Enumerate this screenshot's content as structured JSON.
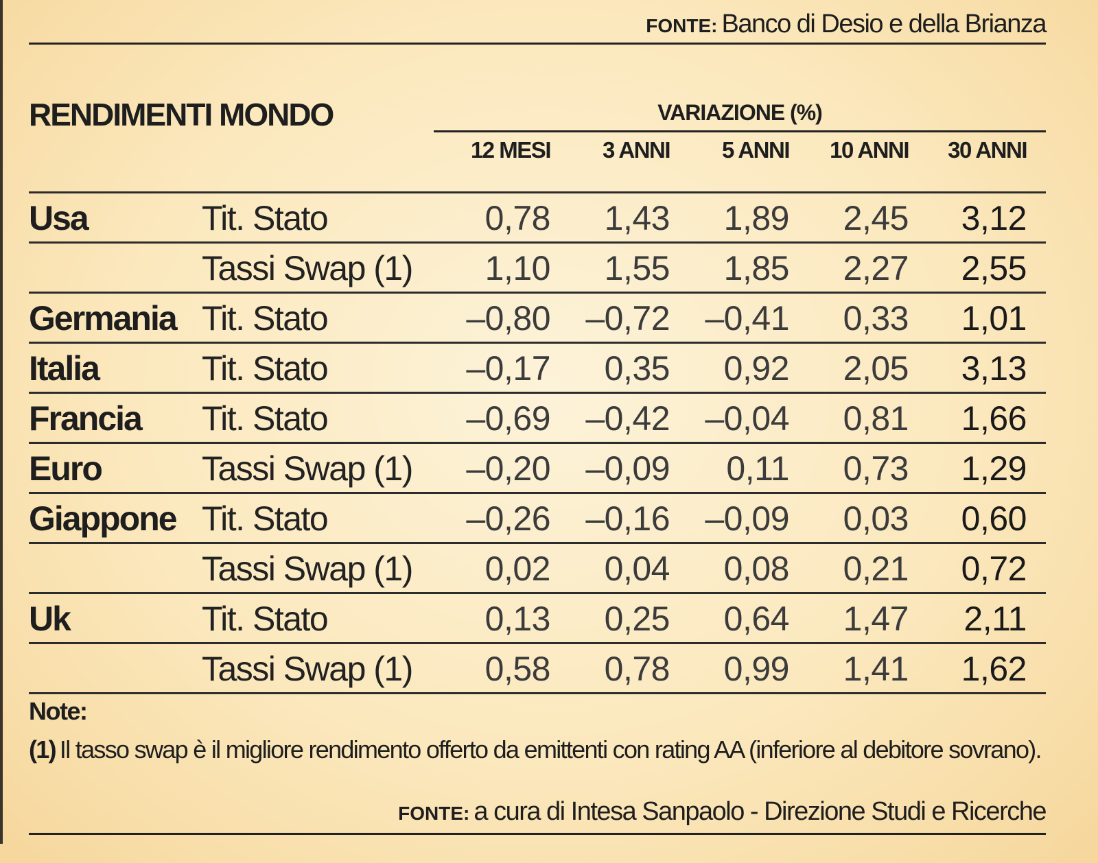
{
  "source_top": {
    "label": "FONTE:",
    "text": "Banco di Desio e della Brianza"
  },
  "table": {
    "title": "RENDIMENTI MONDO",
    "group_header": "VARIAZIONE (%)",
    "columns": [
      "12 MESI",
      "3 ANNI",
      "5 ANNI",
      "10 ANNI",
      "30 ANNI"
    ],
    "rows": [
      {
        "country": "Usa",
        "instrument": "Tit. Stato",
        "values": [
          "0,78",
          "1,43",
          "1,89",
          "2,45",
          "3,12"
        ]
      },
      {
        "country": "",
        "instrument": "Tassi Swap (1)",
        "values": [
          "1,10",
          "1,55",
          "1,85",
          "2,27",
          "2,55"
        ]
      },
      {
        "country": "Germania",
        "instrument": "Tit. Stato",
        "values": [
          "–0,80",
          "–0,72",
          "–0,41",
          "0,33",
          "1,01"
        ]
      },
      {
        "country": "Italia",
        "instrument": "Tit. Stato",
        "values": [
          "–0,17",
          "0,35",
          "0,92",
          "2,05",
          "3,13"
        ]
      },
      {
        "country": "Francia",
        "instrument": "Tit. Stato",
        "values": [
          "–0,69",
          "–0,42",
          "–0,04",
          "0,81",
          "1,66"
        ]
      },
      {
        "country": "Euro",
        "instrument": "Tassi Swap (1)",
        "values": [
          "–0,20",
          "–0,09",
          "0,11",
          "0,73",
          "1,29"
        ]
      },
      {
        "country": "Giappone",
        "instrument": "Tit. Stato",
        "values": [
          "–0,26",
          "–0,16",
          "–0,09",
          "0,03",
          "0,60"
        ]
      },
      {
        "country": "",
        "instrument": "Tassi Swap (1)",
        "values": [
          "0,02",
          "0,04",
          "0,08",
          "0,21",
          "0,72"
        ]
      },
      {
        "country": "Uk",
        "instrument": "Tit. Stato",
        "values": [
          "0,13",
          "0,25",
          "0,64",
          "1,47",
          "2,11"
        ]
      },
      {
        "country": "",
        "instrument": "Tassi Swap (1)",
        "values": [
          "0,58",
          "0,78",
          "0,99",
          "1,41",
          "1,62"
        ]
      }
    ]
  },
  "notes": {
    "title": "Note:",
    "marker": "(1)",
    "text": "Il tasso swap è il migliore rendimento offerto da emittenti con rating AA (inferiore al debitore sovrano)."
  },
  "source_bottom": {
    "label": "FONTE:",
    "text": "a cura di Intesa Sanpaolo - Direzione Studi e Ricerche"
  }
}
